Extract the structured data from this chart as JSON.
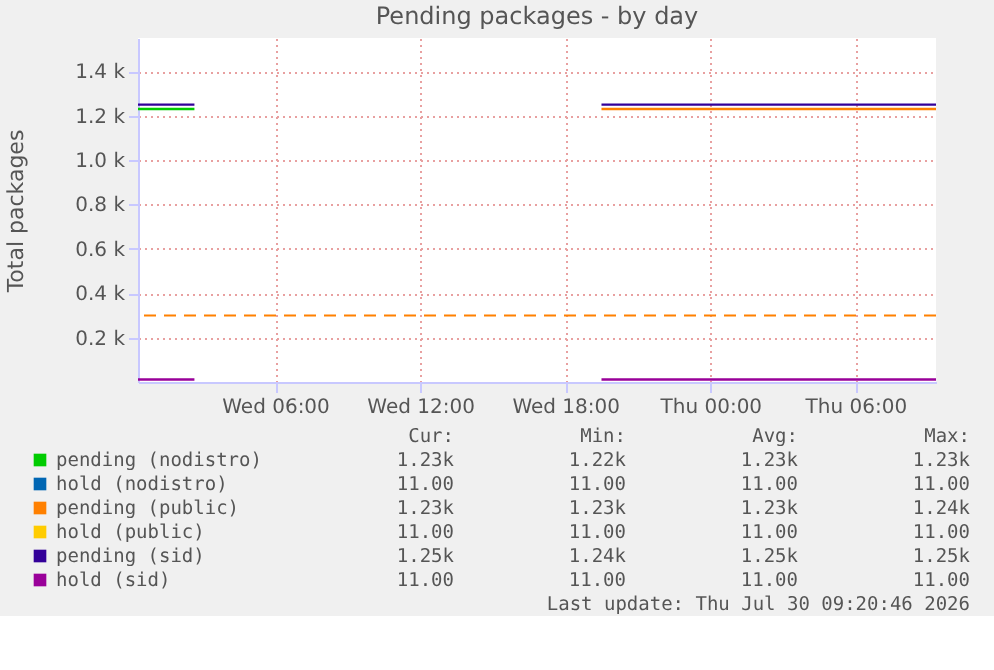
{
  "chart_data": {
    "type": "line",
    "title": "Pending packages - by day",
    "ylabel": "Total packages",
    "x": [
      "2026-07-29T00:20",
      "2026-07-29T02:40",
      "2026-07-29T11:00",
      "2026-07-29T19:30",
      "2026-07-30T09:20"
    ],
    "xlim": [
      "2026-07-29T00:20",
      "2026-07-30T09:20"
    ],
    "xticks": [
      {
        "value": "2026-07-29T06:00",
        "label": "Wed 06:00"
      },
      {
        "value": "2026-07-29T12:00",
        "label": "Wed 12:00"
      },
      {
        "value": "2026-07-29T18:00",
        "label": "Wed 18:00"
      },
      {
        "value": "2026-07-30T00:00",
        "label": "Thu 00:00"
      },
      {
        "value": "2026-07-30T06:00",
        "label": "Thu 06:00"
      }
    ],
    "ylim": [
      0,
      1550
    ],
    "yticks": [
      {
        "value": 200,
        "label": "0.2 k"
      },
      {
        "value": 400,
        "label": "0.4 k"
      },
      {
        "value": 600,
        "label": "0.6 k"
      },
      {
        "value": 800,
        "label": "0.8 k"
      },
      {
        "value": 1000,
        "label": "1.0 k"
      },
      {
        "value": 1200,
        "label": "1.2 k"
      },
      {
        "value": 1400,
        "label": "1.4 k"
      }
    ],
    "series": [
      {
        "name": "pending (nodistro)",
        "color": "#00cc00",
        "values": [
          1230,
          1230,
          null,
          null,
          null
        ]
      },
      {
        "name": "hold (nodistro)",
        "color": "#0066b3",
        "values": [
          null,
          null,
          null,
          null,
          null
        ]
      },
      {
        "name": "pending (public)",
        "color": "#ff8000",
        "values": [
          null,
          null,
          null,
          1230,
          1230
        ]
      },
      {
        "name": "hold (public)",
        "color": "#ffcc00",
        "values": [
          null,
          null,
          null,
          null,
          null
        ]
      },
      {
        "name": "pending (sid)",
        "color": "#330099",
        "values": [
          1250,
          1250,
          null,
          1250,
          1250
        ]
      },
      {
        "name": "hold (sid)",
        "color": "#990099",
        "values": [
          11,
          11,
          null,
          11,
          11
        ]
      }
    ],
    "ref_lines": [
      {
        "axis": "y",
        "value": 300,
        "color": "#ff8000",
        "line_style": "dashed"
      }
    ],
    "annotations": [
      "Cur:",
      "Min:",
      "Avg:",
      "Max:",
      "1.23k",
      "1.22k",
      "1.23k",
      "1.23k",
      "11.00",
      "11.00",
      "11.00",
      "11.00",
      "1.23k",
      "1.23k",
      "1.23k",
      "1.24k",
      "11.00",
      "11.00",
      "11.00",
      "11.00",
      "1.25k",
      "1.24k",
      "1.25k",
      "1.25k",
      "11.00",
      "11.00",
      "11.00",
      "11.00",
      "Last update: Thu Jul 30 09:20:46 2026"
    ],
    "grid": true,
    "legend": "bottom",
    "line_style": "solid",
    "marker": "none"
  }
}
